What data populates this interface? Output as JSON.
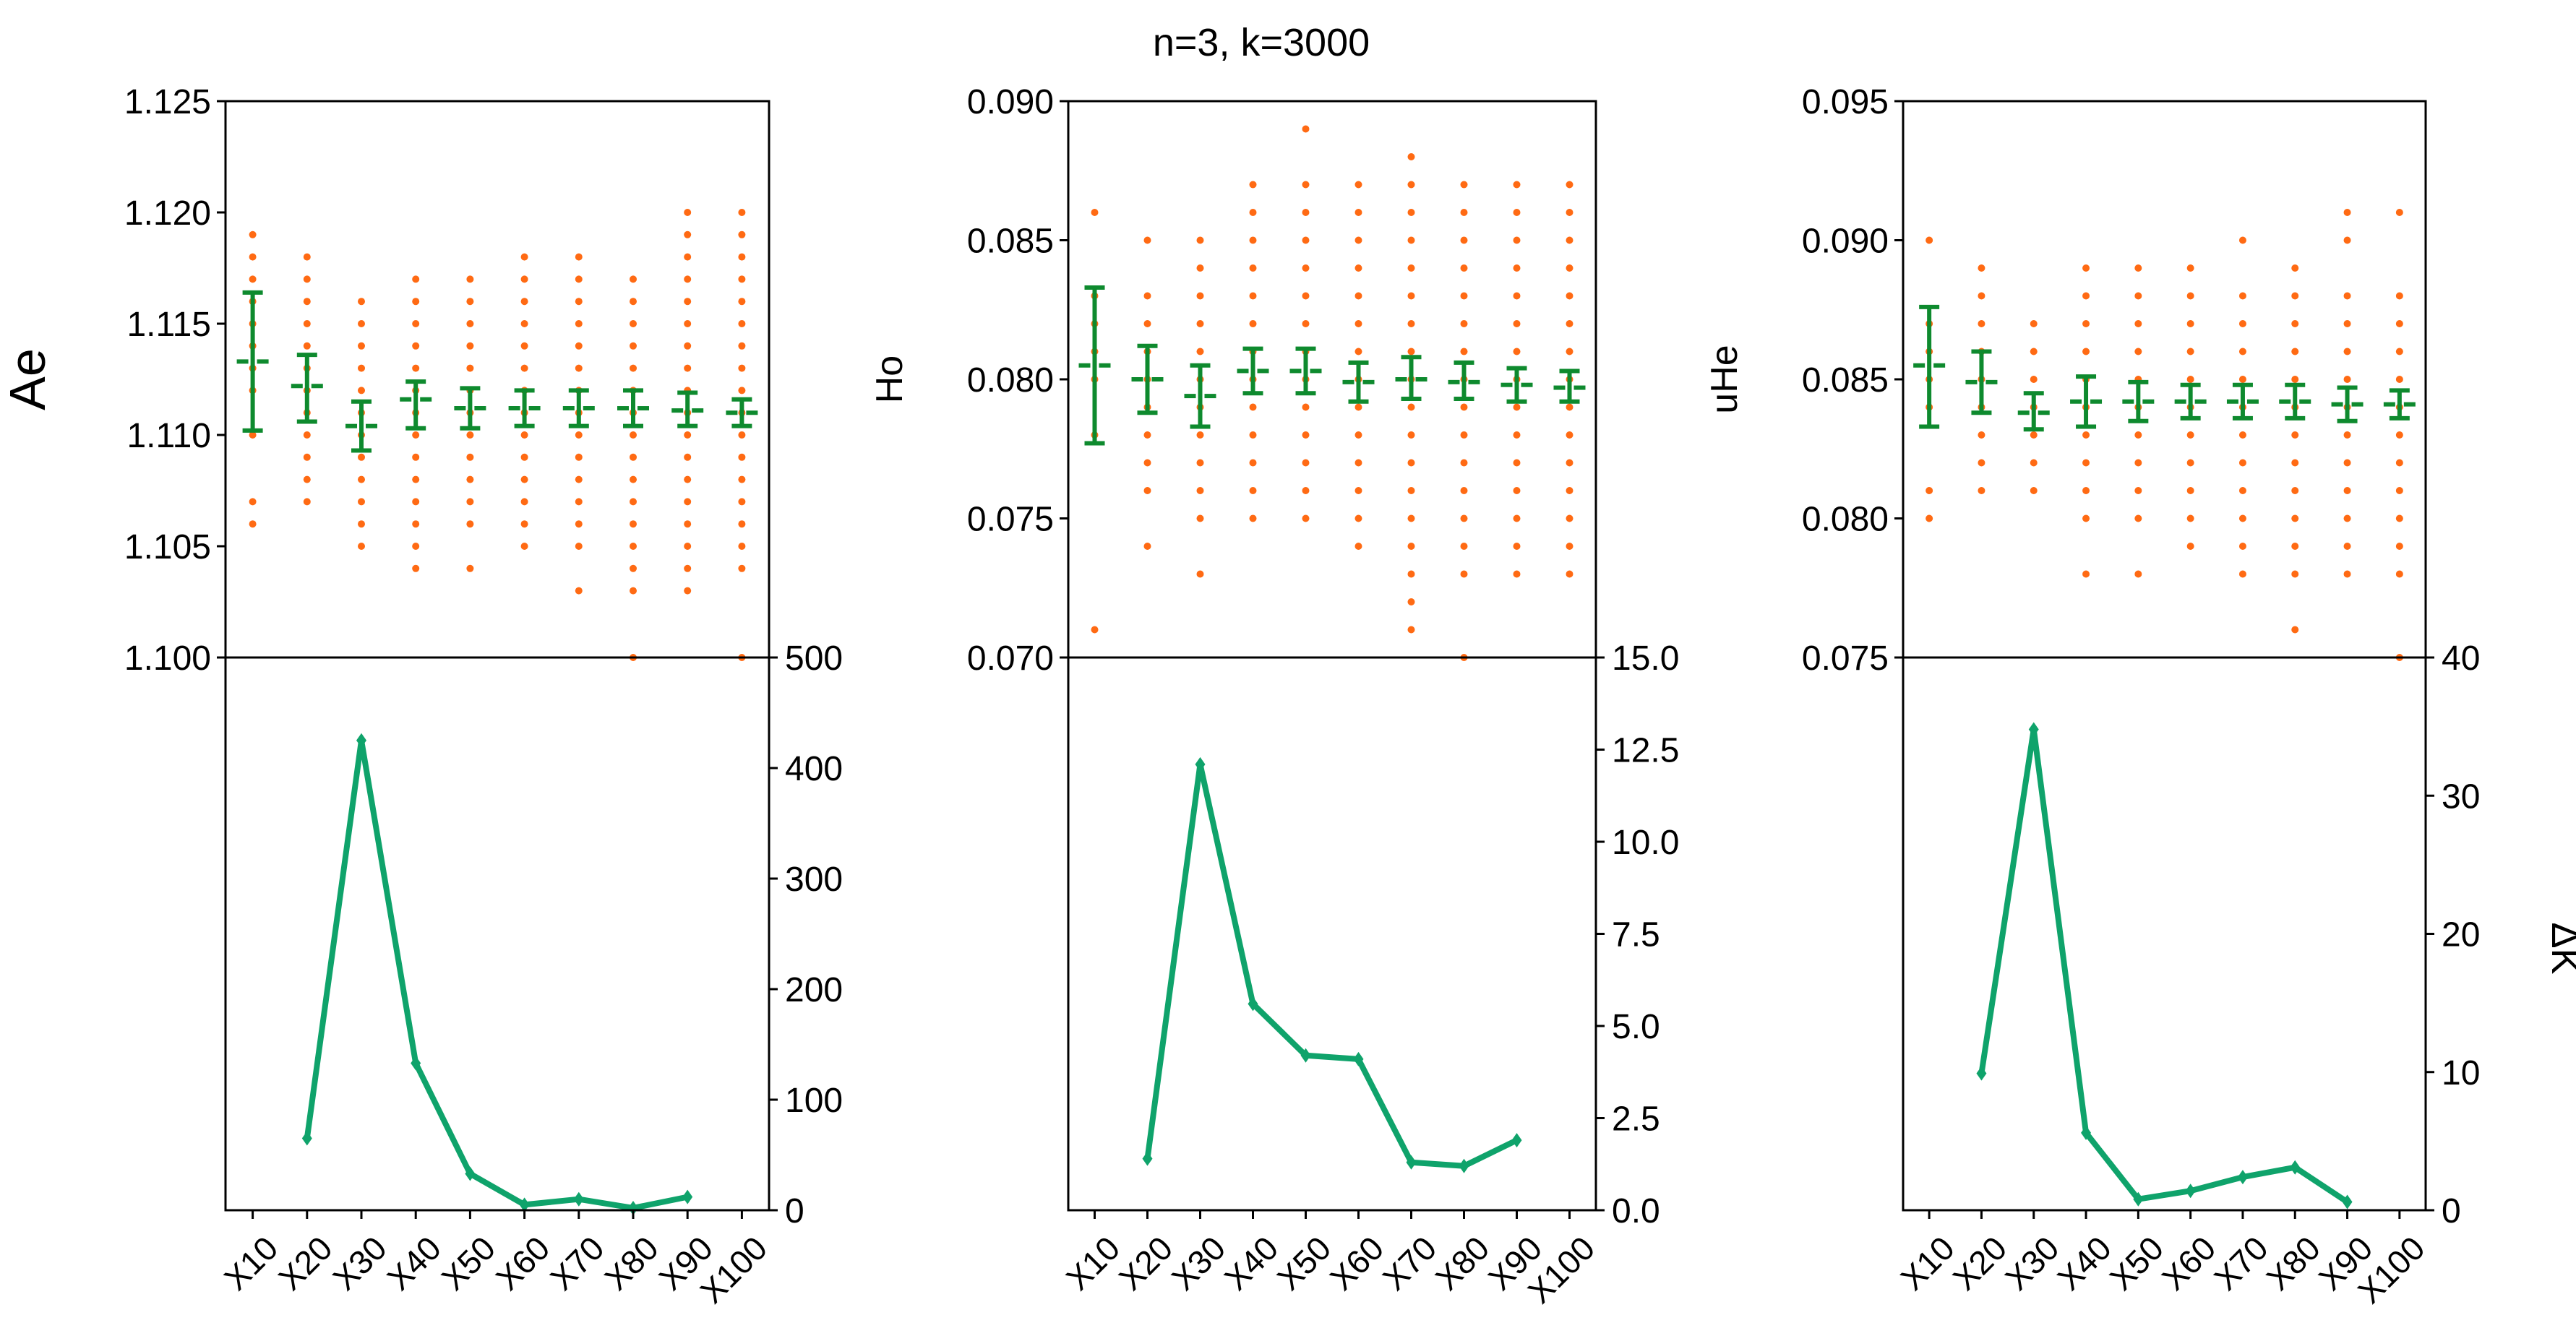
{
  "figure_title": "n=3, k=3000",
  "colors": {
    "scatter": "#ff6a13",
    "errorbar": "#0e8a2e",
    "delta_line": "#0fa36b",
    "axis": "#000000"
  },
  "chart_data": [
    {
      "type": "scatter",
      "title": "",
      "xlabel": "",
      "ylabel": "Ae",
      "categories": [
        "X10",
        "X20",
        "X30",
        "X40",
        "X50",
        "X60",
        "X70",
        "X80",
        "X90",
        "X100"
      ],
      "ylim": [
        1.1,
        1.125
      ],
      "yticks": [
        "1.100",
        "1.105",
        "1.110",
        "1.115",
        "1.120",
        "1.125"
      ],
      "yticks_values": [
        1.1,
        1.105,
        1.11,
        1.115,
        1.12,
        1.125
      ],
      "mean": [
        1.1133,
        1.1122,
        1.1104,
        1.1116,
        1.1112,
        1.1112,
        1.1112,
        1.1112,
        1.1111,
        1.111
      ],
      "ci_low": [
        1.1102,
        1.1106,
        1.1093,
        1.1103,
        1.1103,
        1.1104,
        1.1104,
        1.1104,
        1.1104,
        1.1104
      ],
      "ci_high": [
        1.1164,
        1.1136,
        1.1115,
        1.1124,
        1.1121,
        1.112,
        1.112,
        1.112,
        1.1119,
        1.1116
      ],
      "points": [
        [
          1.106,
          1.107,
          1.11,
          1.112,
          1.113,
          1.114,
          1.115,
          1.116,
          1.117,
          1.118,
          1.119
        ],
        [
          1.107,
          1.108,
          1.109,
          1.11,
          1.111,
          1.112,
          1.113,
          1.114,
          1.115,
          1.116,
          1.117,
          1.118
        ],
        [
          1.105,
          1.106,
          1.107,
          1.108,
          1.109,
          1.11,
          1.111,
          1.112,
          1.113,
          1.114,
          1.115,
          1.116
        ],
        [
          1.104,
          1.105,
          1.106,
          1.107,
          1.108,
          1.109,
          1.11,
          1.111,
          1.112,
          1.113,
          1.114,
          1.115,
          1.116,
          1.117
        ],
        [
          1.104,
          1.106,
          1.107,
          1.108,
          1.109,
          1.11,
          1.111,
          1.112,
          1.113,
          1.114,
          1.115,
          1.116,
          1.117
        ],
        [
          1.105,
          1.106,
          1.107,
          1.108,
          1.109,
          1.11,
          1.111,
          1.112,
          1.113,
          1.114,
          1.115,
          1.116,
          1.117,
          1.118
        ],
        [
          1.103,
          1.105,
          1.106,
          1.107,
          1.108,
          1.109,
          1.11,
          1.111,
          1.112,
          1.113,
          1.114,
          1.115,
          1.116,
          1.117,
          1.118
        ],
        [
          1.1,
          1.103,
          1.104,
          1.105,
          1.106,
          1.107,
          1.108,
          1.109,
          1.11,
          1.111,
          1.112,
          1.113,
          1.114,
          1.115,
          1.116,
          1.117
        ],
        [
          1.103,
          1.104,
          1.105,
          1.106,
          1.107,
          1.108,
          1.109,
          1.11,
          1.111,
          1.112,
          1.113,
          1.114,
          1.115,
          1.116,
          1.117,
          1.118,
          1.119,
          1.12
        ],
        [
          1.1,
          1.104,
          1.105,
          1.106,
          1.107,
          1.108,
          1.109,
          1.11,
          1.111,
          1.112,
          1.113,
          1.114,
          1.115,
          1.116,
          1.117,
          1.118,
          1.119,
          1.12
        ]
      ]
    },
    {
      "type": "line",
      "title": "",
      "xlabel": "",
      "ylabel": "",
      "categories": [
        "X20",
        "X30",
        "X40",
        "X50",
        "X60",
        "X70",
        "X80",
        "X90"
      ],
      "values": [
        65,
        425,
        133,
        33,
        5,
        10,
        2,
        12
      ],
      "ylim": [
        0,
        500
      ],
      "yticks": [
        "0",
        "100",
        "200",
        "300",
        "400",
        "500"
      ],
      "yticks_values": [
        0,
        100,
        200,
        300,
        400,
        500
      ]
    },
    {
      "type": "scatter",
      "title": "n=3, k=3000",
      "xlabel": "",
      "ylabel": "Ho",
      "categories": [
        "X10",
        "X20",
        "X30",
        "X40",
        "X50",
        "X60",
        "X70",
        "X80",
        "X90",
        "X100"
      ],
      "ylim": [
        0.07,
        0.09
      ],
      "yticks": [
        "0.070",
        "0.075",
        "0.080",
        "0.085",
        "0.090"
      ],
      "yticks_values": [
        0.07,
        0.075,
        0.08,
        0.085,
        0.09
      ],
      "mean": [
        0.0805,
        0.08,
        0.0794,
        0.0803,
        0.0803,
        0.0799,
        0.08,
        0.0799,
        0.0798,
        0.0797
      ],
      "ci_low": [
        0.0777,
        0.0788,
        0.0783,
        0.0795,
        0.0795,
        0.0792,
        0.0793,
        0.0793,
        0.0792,
        0.0792
      ],
      "ci_high": [
        0.0833,
        0.0812,
        0.0805,
        0.0811,
        0.0811,
        0.0806,
        0.0808,
        0.0806,
        0.0804,
        0.0803
      ],
      "points": [
        [
          0.071,
          0.078,
          0.08,
          0.081,
          0.082,
          0.083,
          0.086
        ],
        [
          0.074,
          0.076,
          0.077,
          0.078,
          0.079,
          0.08,
          0.081,
          0.082,
          0.083,
          0.085
        ],
        [
          0.073,
          0.075,
          0.076,
          0.077,
          0.078,
          0.079,
          0.08,
          0.081,
          0.082,
          0.083,
          0.084,
          0.085
        ],
        [
          0.075,
          0.076,
          0.077,
          0.078,
          0.079,
          0.08,
          0.081,
          0.082,
          0.083,
          0.084,
          0.085,
          0.086,
          0.087
        ],
        [
          0.075,
          0.076,
          0.077,
          0.078,
          0.079,
          0.08,
          0.081,
          0.082,
          0.083,
          0.084,
          0.085,
          0.086,
          0.087,
          0.089
        ],
        [
          0.074,
          0.075,
          0.076,
          0.077,
          0.078,
          0.079,
          0.08,
          0.081,
          0.082,
          0.083,
          0.084,
          0.085,
          0.086,
          0.087
        ],
        [
          0.071,
          0.072,
          0.073,
          0.074,
          0.075,
          0.076,
          0.077,
          0.078,
          0.079,
          0.08,
          0.081,
          0.082,
          0.083,
          0.084,
          0.085,
          0.086,
          0.087,
          0.088
        ],
        [
          0.07,
          0.073,
          0.074,
          0.075,
          0.076,
          0.077,
          0.078,
          0.079,
          0.08,
          0.081,
          0.082,
          0.083,
          0.084,
          0.085,
          0.086,
          0.087
        ],
        [
          0.073,
          0.074,
          0.075,
          0.076,
          0.077,
          0.078,
          0.079,
          0.08,
          0.081,
          0.082,
          0.083,
          0.084,
          0.085,
          0.086,
          0.087
        ],
        [
          0.073,
          0.074,
          0.075,
          0.076,
          0.077,
          0.078,
          0.079,
          0.08,
          0.081,
          0.082,
          0.083,
          0.084,
          0.085,
          0.086,
          0.087
        ]
      ]
    },
    {
      "type": "line",
      "title": "",
      "xlabel": "",
      "ylabel": "",
      "categories": [
        "X20",
        "X30",
        "X40",
        "X50",
        "X60",
        "X70",
        "X80",
        "X90"
      ],
      "values": [
        1.4,
        12.1,
        5.6,
        4.2,
        4.1,
        1.3,
        1.2,
        1.9
      ],
      "ylim": [
        0,
        15
      ],
      "yticks": [
        "0.0",
        "2.5",
        "5.0",
        "7.5",
        "10.0",
        "12.5",
        "15.0"
      ],
      "yticks_values": [
        0,
        2.5,
        5,
        7.5,
        10,
        12.5,
        15
      ]
    },
    {
      "type": "scatter",
      "title": "",
      "xlabel": "",
      "ylabel": "uHe",
      "categories": [
        "X10",
        "X20",
        "X30",
        "X40",
        "X50",
        "X60",
        "X70",
        "X80",
        "X90",
        "X100"
      ],
      "ylim": [
        0.075,
        0.095
      ],
      "yticks": [
        "0.075",
        "0.080",
        "0.085",
        "0.090",
        "0.095"
      ],
      "yticks_values": [
        0.075,
        0.08,
        0.085,
        0.09,
        0.095
      ],
      "mean": [
        0.0855,
        0.0849,
        0.0838,
        0.0842,
        0.0842,
        0.0842,
        0.0842,
        0.0842,
        0.0841,
        0.0841
      ],
      "ci_low": [
        0.0833,
        0.0838,
        0.0832,
        0.0833,
        0.0835,
        0.0836,
        0.0836,
        0.0836,
        0.0835,
        0.0836
      ],
      "ci_high": [
        0.0876,
        0.086,
        0.0845,
        0.0851,
        0.0849,
        0.0848,
        0.0848,
        0.0848,
        0.0847,
        0.0846
      ],
      "points": [
        [
          0.08,
          0.081,
          0.084,
          0.085,
          0.086,
          0.087,
          0.09
        ],
        [
          0.081,
          0.082,
          0.083,
          0.084,
          0.085,
          0.086,
          0.087,
          0.088,
          0.089
        ],
        [
          0.081,
          0.082,
          0.083,
          0.084,
          0.085,
          0.086,
          0.087
        ],
        [
          0.078,
          0.08,
          0.081,
          0.082,
          0.083,
          0.084,
          0.085,
          0.086,
          0.087,
          0.088,
          0.089
        ],
        [
          0.078,
          0.08,
          0.081,
          0.082,
          0.083,
          0.084,
          0.085,
          0.086,
          0.087,
          0.088,
          0.089
        ],
        [
          0.079,
          0.08,
          0.081,
          0.082,
          0.083,
          0.084,
          0.085,
          0.086,
          0.087,
          0.088,
          0.089
        ],
        [
          0.078,
          0.079,
          0.08,
          0.081,
          0.082,
          0.083,
          0.084,
          0.085,
          0.086,
          0.087,
          0.088,
          0.09
        ],
        [
          0.076,
          0.078,
          0.079,
          0.08,
          0.081,
          0.082,
          0.083,
          0.084,
          0.085,
          0.086,
          0.087,
          0.088,
          0.089
        ],
        [
          0.078,
          0.079,
          0.08,
          0.081,
          0.082,
          0.083,
          0.084,
          0.085,
          0.086,
          0.087,
          0.088,
          0.09,
          0.091
        ],
        [
          0.075,
          0.078,
          0.079,
          0.08,
          0.081,
          0.082,
          0.083,
          0.084,
          0.085,
          0.086,
          0.087,
          0.088,
          0.091
        ]
      ]
    },
    {
      "type": "line",
      "title": "",
      "xlabel": "",
      "ylabel": "ΔK",
      "categories": [
        "X20",
        "X30",
        "X40",
        "X50",
        "X60",
        "X70",
        "X80",
        "X90"
      ],
      "values": [
        9.9,
        34.8,
        5.6,
        0.8,
        1.4,
        2.4,
        3.1,
        0.6
      ],
      "ylim": [
        0,
        40
      ],
      "yticks": [
        "0",
        "10",
        "20",
        "30",
        "40"
      ],
      "yticks_values": [
        0,
        10,
        20,
        30,
        40
      ]
    }
  ]
}
